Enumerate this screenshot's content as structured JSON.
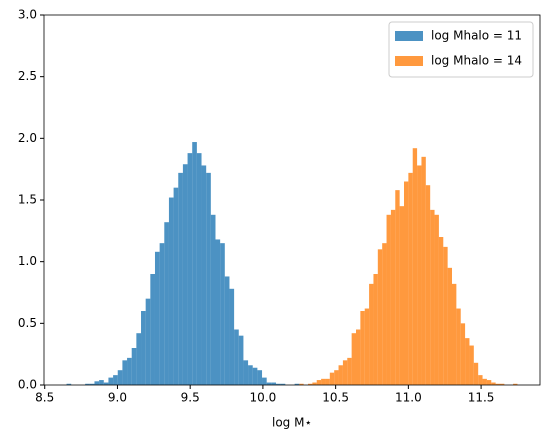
{
  "chart_data": {
    "type": "histogram",
    "xlabel": "log M⋆",
    "xlim": [
      8.495,
      11.905
    ],
    "ylim": [
      0,
      3
    ],
    "xticks": [
      8.5,
      {
        "value": 9,
        "label": "9.0"
      },
      9.5,
      {
        "value": 10,
        "label": "10.0"
      },
      10.5,
      {
        "value": 11,
        "label": "11.0"
      },
      11.5
    ],
    "yticks": [
      {
        "value": 0,
        "label": "0.0"
      },
      0.5,
      {
        "value": 1,
        "label": "1.0"
      },
      1.5,
      {
        "value": 2,
        "label": "2.0"
      },
      2.5,
      {
        "value": 3,
        "label": "3.0"
      }
    ],
    "legend": "upper right",
    "series": [
      {
        "name": "log Mhalo = 11",
        "color": "#1f77b4",
        "bins": [
          8.65,
          8.682,
          8.714,
          8.746,
          8.778,
          8.81,
          8.842,
          8.874,
          8.906,
          8.938,
          8.97,
          9.002,
          9.034,
          9.066,
          9.098,
          9.13,
          9.162,
          9.194,
          9.226,
          9.258,
          9.29,
          9.322,
          9.354,
          9.386,
          9.418,
          9.45,
          9.482,
          9.514,
          9.546,
          9.578,
          9.61,
          9.642,
          9.674,
          9.706,
          9.738,
          9.77,
          9.802,
          9.834,
          9.866,
          9.898,
          9.93,
          9.962,
          9.994,
          10.026,
          10.058,
          10.09,
          10.122,
          10.154,
          10.186,
          10.218,
          10.25
        ],
        "values": [
          0.01,
          0,
          0,
          0,
          0.01,
          0.01,
          0.03,
          0.04,
          0.02,
          0.06,
          0.08,
          0.12,
          0.2,
          0.22,
          0.3,
          0.42,
          0.6,
          0.7,
          0.9,
          1.08,
          1.15,
          1.32,
          1.52,
          1.6,
          1.72,
          1.79,
          1.88,
          1.97,
          1.88,
          1.78,
          1.72,
          1.38,
          1.18,
          1.15,
          0.88,
          0.78,
          0.45,
          0.4,
          0.2,
          0.16,
          0.14,
          0.12,
          0.06,
          0.02,
          0.02,
          0.01,
          0.01,
          0,
          0,
          0.01
        ]
      },
      {
        "name": "log Mhalo = 14",
        "color": "#ff7f0e",
        "bins": [
          10.25,
          10.28,
          10.31,
          10.34,
          10.37,
          10.4,
          10.43,
          10.46,
          10.49,
          10.52,
          10.55,
          10.58,
          10.61,
          10.64,
          10.67,
          10.7,
          10.73,
          10.76,
          10.79,
          10.82,
          10.85,
          10.88,
          10.91,
          10.94,
          10.97,
          11,
          11.03,
          11.06,
          11.09,
          11.12,
          11.15,
          11.18,
          11.21,
          11.24,
          11.27,
          11.3,
          11.33,
          11.36,
          11.39,
          11.42,
          11.45,
          11.48,
          11.51,
          11.54,
          11.57,
          11.6,
          11.63,
          11.66,
          11.69,
          11.72,
          11.75
        ],
        "values": [
          0.01,
          0,
          0.01,
          0.02,
          0.04,
          0.05,
          0.05,
          0.1,
          0.12,
          0.16,
          0.2,
          0.22,
          0.42,
          0.45,
          0.6,
          0.62,
          0.82,
          0.9,
          1.1,
          1.15,
          1.38,
          1.42,
          1.58,
          1.45,
          1.65,
          1.72,
          1.92,
          1.78,
          1.85,
          1.62,
          1.42,
          1.38,
          1.2,
          1.12,
          0.95,
          0.82,
          0.62,
          0.5,
          0.38,
          0.32,
          0.18,
          0.08,
          0.05,
          0.04,
          0.02,
          0.01,
          0.01,
          0,
          0,
          0.01
        ]
      }
    ]
  }
}
